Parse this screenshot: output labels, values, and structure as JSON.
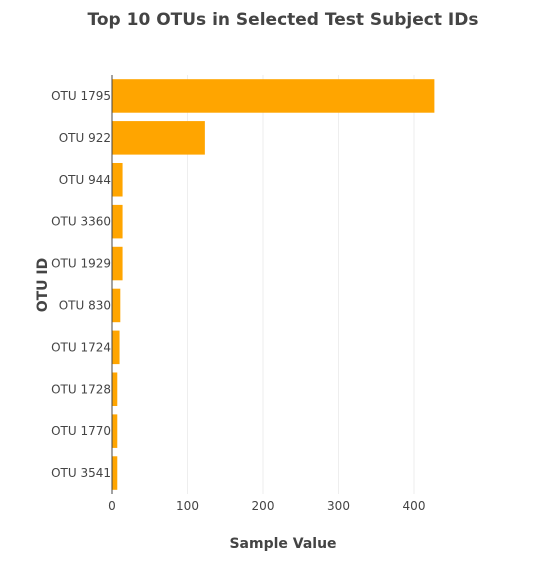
{
  "chart_data": {
    "type": "bar",
    "orientation": "horizontal",
    "title": "Top 10 OTUs in Selected Test Subject IDs",
    "xlabel": "Sample Value",
    "ylabel": "OTU ID",
    "categories": [
      "OTU 1795",
      "OTU 922",
      "OTU 944",
      "OTU 3360",
      "OTU 1929",
      "OTU 830",
      "OTU 1724",
      "OTU 1728",
      "OTU 1770",
      "OTU 3541"
    ],
    "values": [
      427,
      123,
      14,
      14,
      14,
      11,
      10,
      7,
      7,
      7
    ],
    "xlim": [
      0,
      456
    ],
    "xticks": [
      0,
      100,
      200,
      300,
      400
    ],
    "bar_color": "#ffa500",
    "grid": "vertical",
    "legend": "none"
  }
}
